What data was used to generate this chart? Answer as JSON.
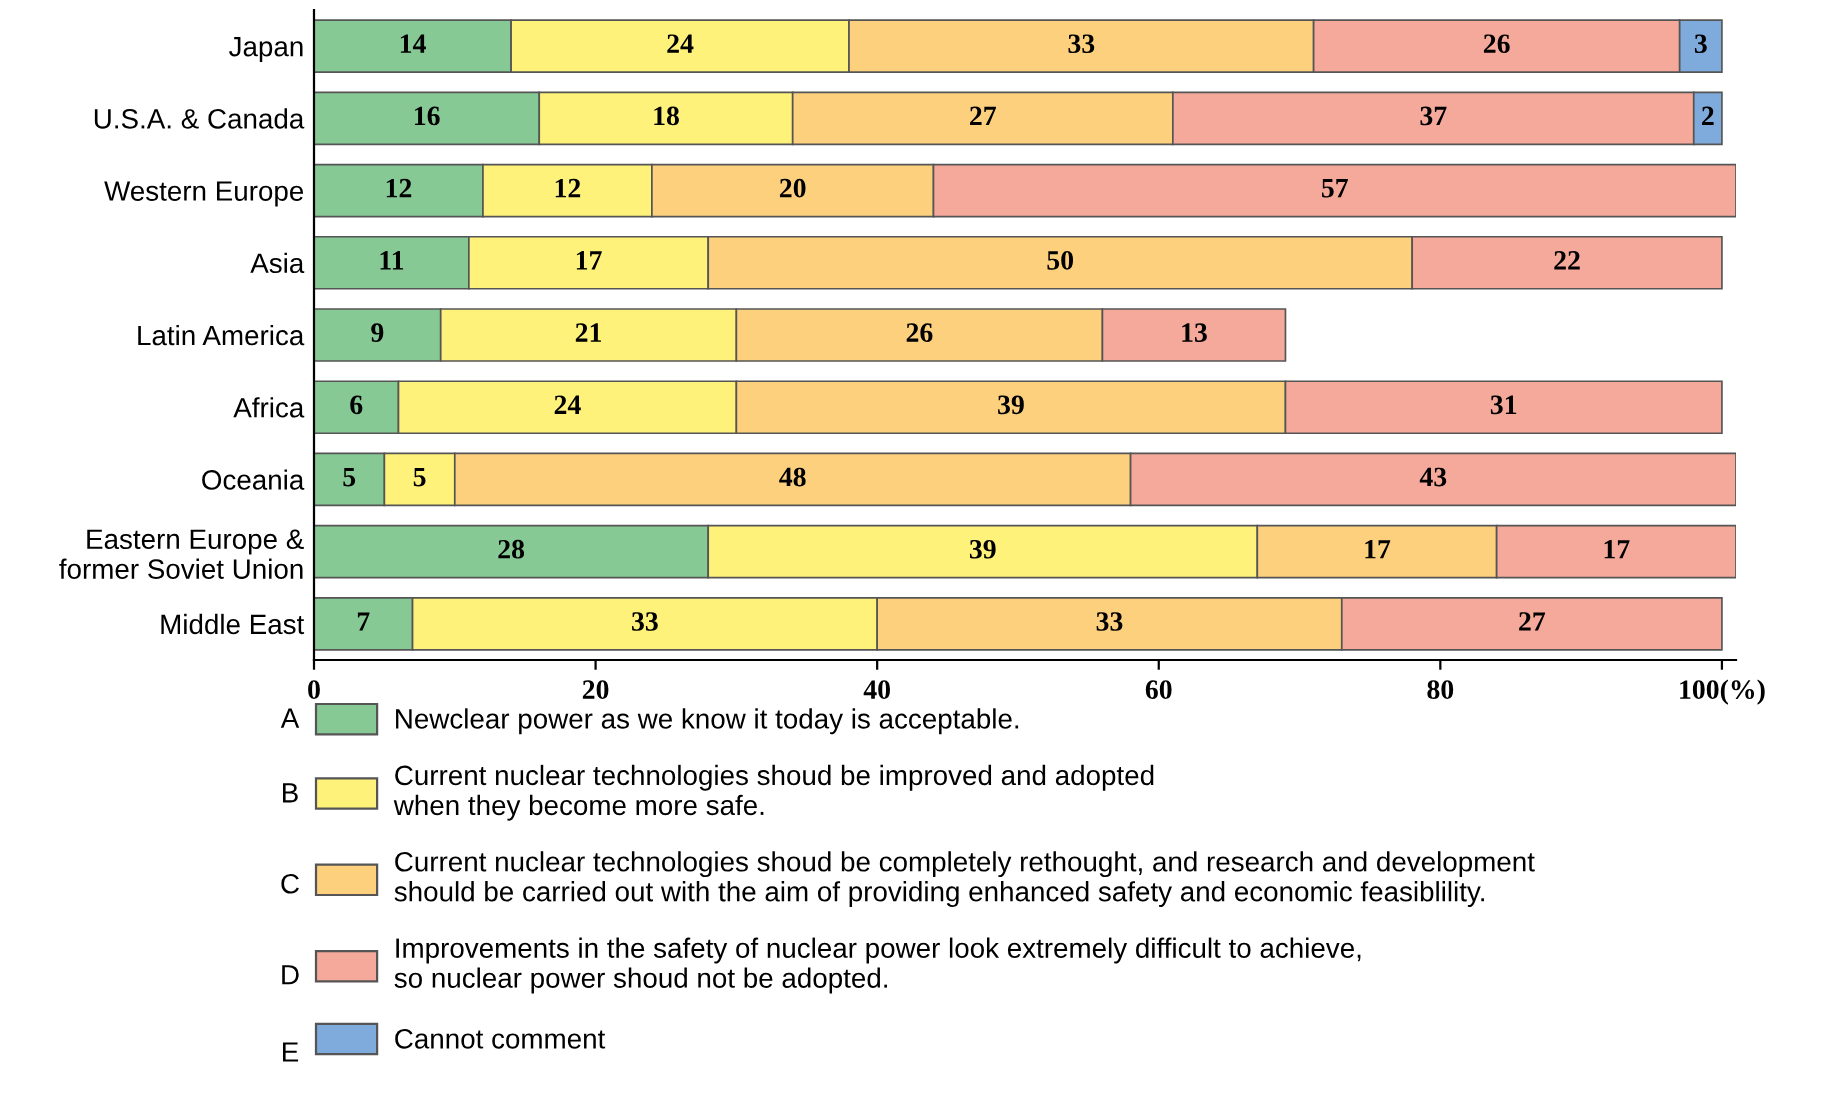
{
  "chart_data": {
    "type": "bar",
    "orientation": "horizontal",
    "stacked": true,
    "categories": [
      "Japan",
      "U.S.A. & Canada",
      "Western Europe",
      "Asia",
      "Latin America",
      "Africa",
      "Oceania",
      "Eastern Europe &\nformer Soviet Union",
      "Middle East"
    ],
    "series": [
      {
        "name": "Newclear power as we know it today is acceptable.",
        "color": "#86c995",
        "values": [
          14,
          16,
          12,
          11,
          9,
          6,
          5,
          28,
          7
        ],
        "value_labels": [
          "14",
          "16",
          "12",
          "11",
          "9",
          "6",
          "5",
          "28",
          "7"
        ]
      },
      {
        "name": "Current nuclear technologies shoud be improved and adopted\nwhen they become more safe.",
        "color": "#fff27a",
        "values": [
          24,
          18,
          12,
          17,
          21,
          24,
          5,
          39,
          33
        ],
        "value_labels": [
          "24",
          "18",
          "12",
          "17",
          "21",
          "24",
          "5",
          "39",
          "33"
        ]
      },
      {
        "name": "Current nuclear technologies shoud be completely rethought, and research and development\nshould be carried out with the aim of providing enhanced safety and economic feasiblility.",
        "color": "#fcd07c",
        "values": [
          33,
          27,
          20,
          50,
          26,
          39,
          48,
          17,
          33
        ],
        "value_labels": [
          "33",
          "27",
          "20",
          "50",
          "26",
          "39",
          "48",
          "17",
          "33"
        ]
      },
      {
        "name": "Improvements in the safety of nuclear power look extremely difficult to achieve,\nso nuclear power shoud not be adopted.",
        "color": "#f4a99a",
        "values": [
          26,
          37,
          57,
          22,
          13,
          31,
          43,
          17,
          27
        ],
        "value_labels": [
          "26",
          "37",
          "57",
          "22",
          "13",
          "31",
          "43",
          "17",
          "27"
        ]
      },
      {
        "name": "Cannot comment",
        "color": "#7faadc",
        "values": [
          3,
          2,
          null,
          null,
          null,
          null,
          null,
          null,
          null
        ],
        "value_labels": [
          "3",
          "2",
          null,
          null,
          null,
          null,
          null,
          null,
          null
        ]
      }
    ],
    "annotations": [
      "A",
      "B",
      "C",
      "D",
      "E"
    ],
    "xlim": [
      0,
      101
    ],
    "xticks": [
      0,
      20,
      40,
      60,
      80,
      {
        "value": 100,
        "label": "100(%)"
      }
    ],
    "grid": false,
    "legend": "bottom"
  }
}
